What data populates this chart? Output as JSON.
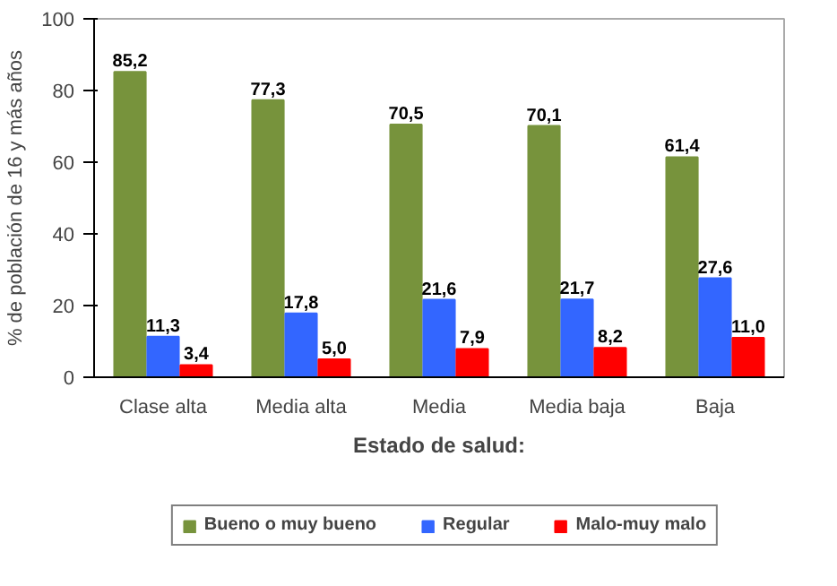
{
  "chart_data": {
    "type": "bar",
    "xlabel": "Estado de salud:",
    "ylabel": "% de población de 16 y más años",
    "categories": [
      "Clase alta",
      "Media alta",
      "Media",
      "Media baja",
      "Baja"
    ],
    "series": [
      {
        "name": "Bueno o muy bueno",
        "color": "#77933c",
        "values": [
          85.2,
          77.3,
          70.5,
          70.1,
          61.4
        ],
        "value_labels": [
          "85,2",
          "77,3",
          "70,5",
          "70,1",
          "61,4"
        ]
      },
      {
        "name": "Regular",
        "color": "#3366ff",
        "values": [
          11.3,
          17.8,
          21.6,
          21.7,
          27.6
        ],
        "value_labels": [
          "11,3",
          "17,8",
          "21,6",
          "21,7",
          "27,6"
        ]
      },
      {
        "name": "Malo-muy malo",
        "color": "#ff0000",
        "values": [
          3.4,
          5.0,
          7.9,
          8.2,
          11.0
        ],
        "value_labels": [
          "3,4",
          "5,0",
          "7,9",
          "8,2",
          "11,0"
        ]
      }
    ],
    "ylim": [
      0,
      100
    ],
    "yticks": [
      0,
      20,
      40,
      60,
      80,
      100
    ],
    "grid": false,
    "legend": "bottom"
  }
}
